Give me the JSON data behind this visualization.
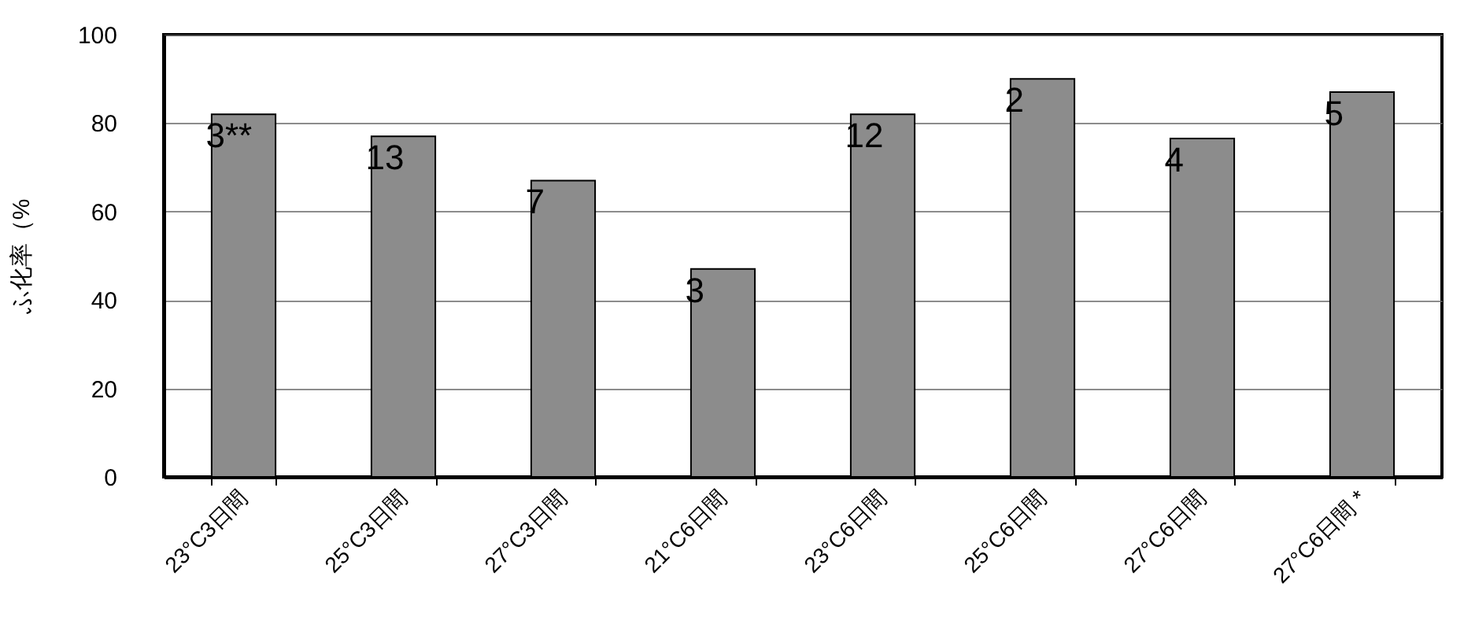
{
  "chart_data": {
    "type": "bar",
    "ylabel": "ふ化率（%",
    "categories": [
      "23°C3日間",
      "25°C3日間",
      "27°C3日間",
      "21°C6日間",
      "23°C6日間",
      "25°C6日間",
      "27°C6日間",
      "27°C6日間 *"
    ],
    "values": [
      82,
      77,
      67,
      47,
      82,
      90,
      76.5,
      87
    ],
    "color": "#8c8c8c",
    "ylim": [
      0,
      100
    ],
    "yticks": [
      0,
      20,
      40,
      60,
      80,
      100
    ],
    "grid": "y",
    "annotations": [
      {
        "text": "3**",
        "x": "23°C3日間",
        "y": 82
      },
      {
        "text": "13",
        "x": "25°C3日間",
        "y": 77
      },
      {
        "text": "7",
        "x": "27°C3日間",
        "y": 67
      },
      {
        "text": "3",
        "x": "21°C6日間",
        "y": 47
      },
      {
        "text": "12",
        "x": "23°C6日間",
        "y": 82
      },
      {
        "text": "2",
        "x": "25°C6日間",
        "y": 90
      },
      {
        "text": "4",
        "x": "27°C6日間",
        "y": 76.5
      },
      {
        "text": "5",
        "x": "27°C6日間 *",
        "y": 87
      }
    ]
  }
}
